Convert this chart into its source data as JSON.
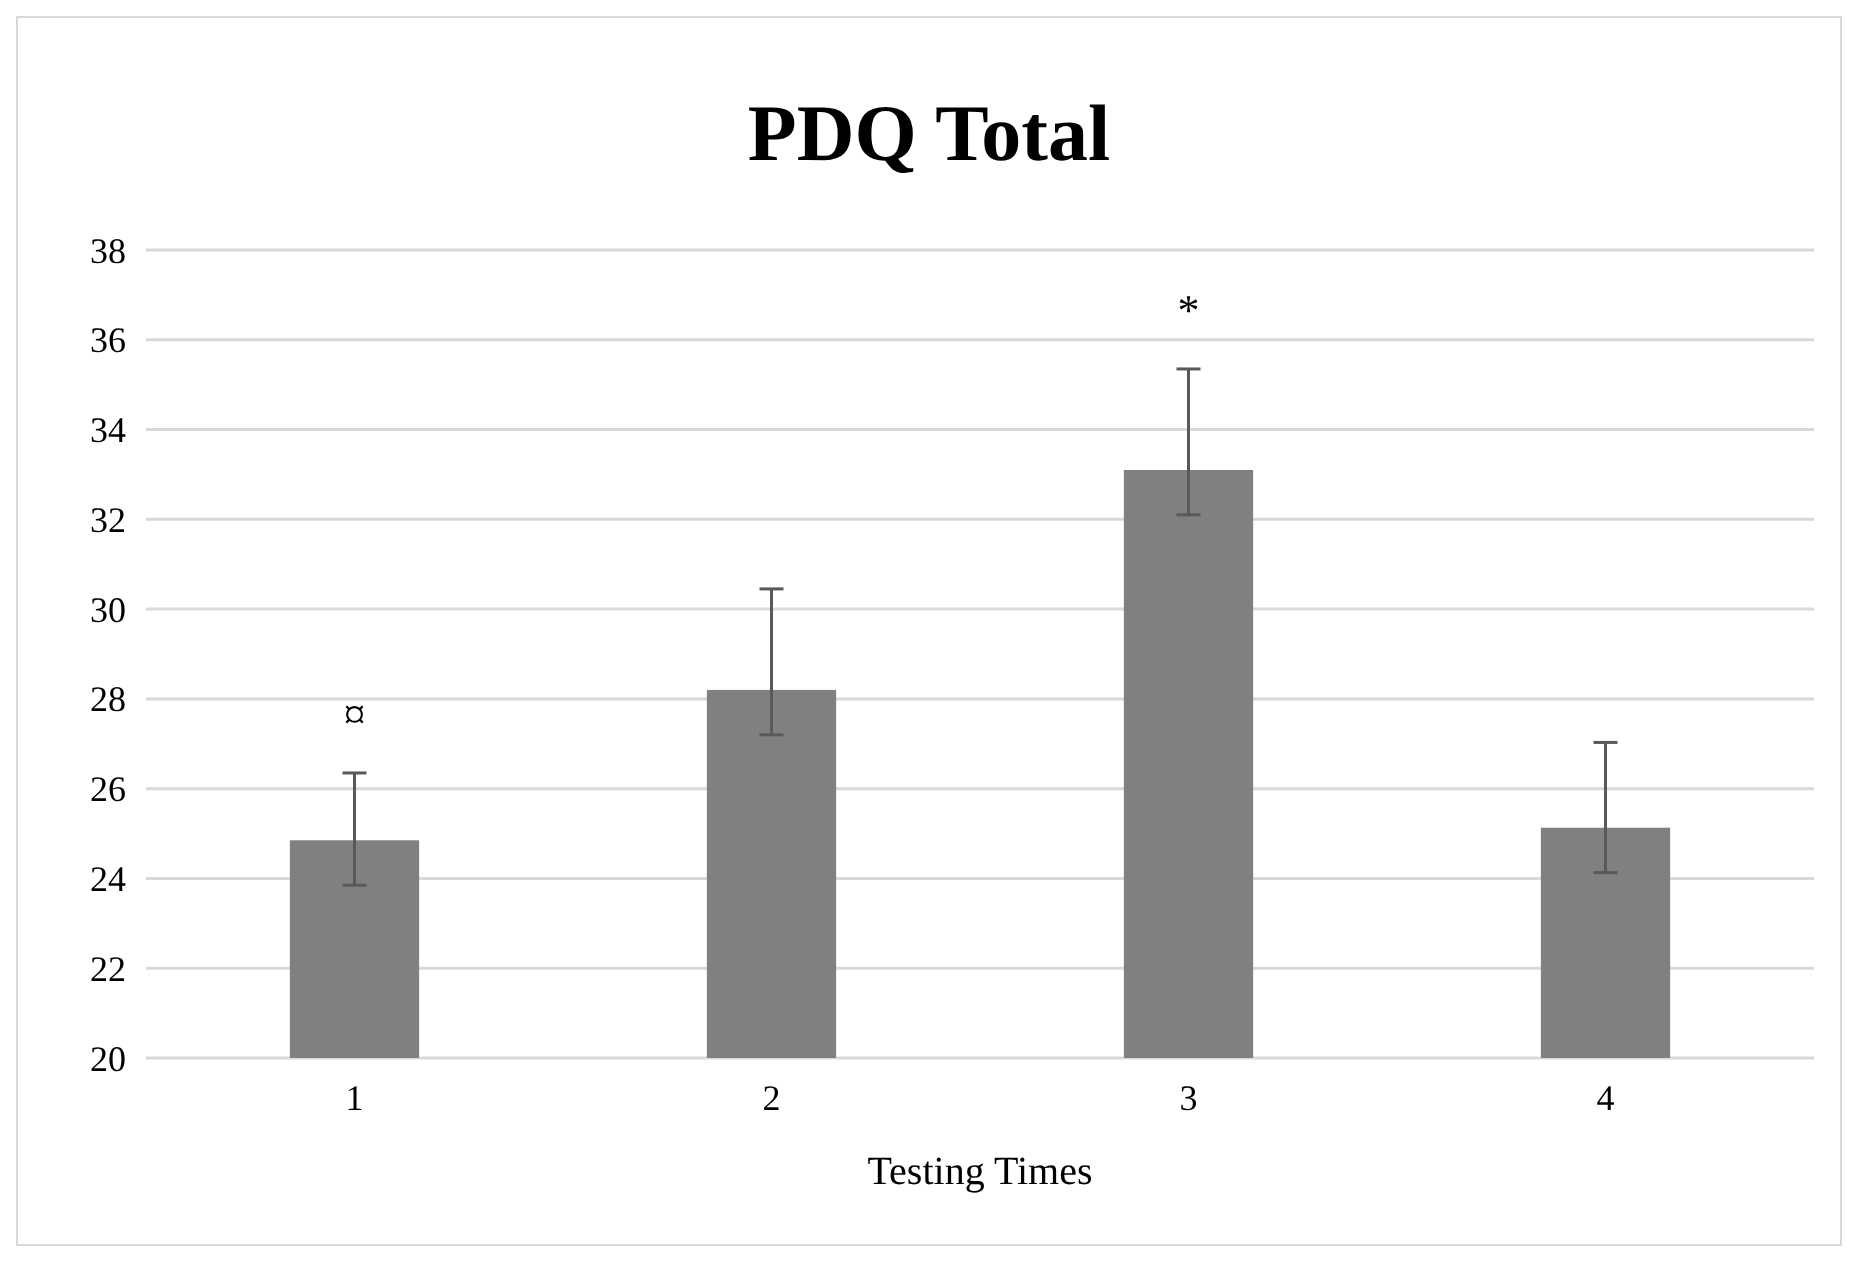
{
  "chart_data": {
    "type": "bar",
    "title": "PDQ Total",
    "xlabel": "Testing Times",
    "categories": [
      "1",
      "2",
      "3",
      "4"
    ],
    "values": [
      24.85,
      28.2,
      33.1,
      25.13
    ],
    "color": "#808080",
    "errors": [
      [
        23.85,
        26.35
      ],
      [
        27.2,
        30.45
      ],
      [
        32.1,
        35.35
      ],
      [
        24.13,
        27.03
      ]
    ],
    "ylim": [
      20,
      38
    ],
    "yticks": [
      20,
      22,
      24,
      26,
      28,
      30,
      32,
      34,
      36,
      38
    ],
    "grid": "y",
    "annotations": [
      {
        "text": "¤",
        "x": "1",
        "y": 26.35
      },
      {
        "text": "*",
        "x": "3",
        "y": 35.35
      }
    ]
  }
}
